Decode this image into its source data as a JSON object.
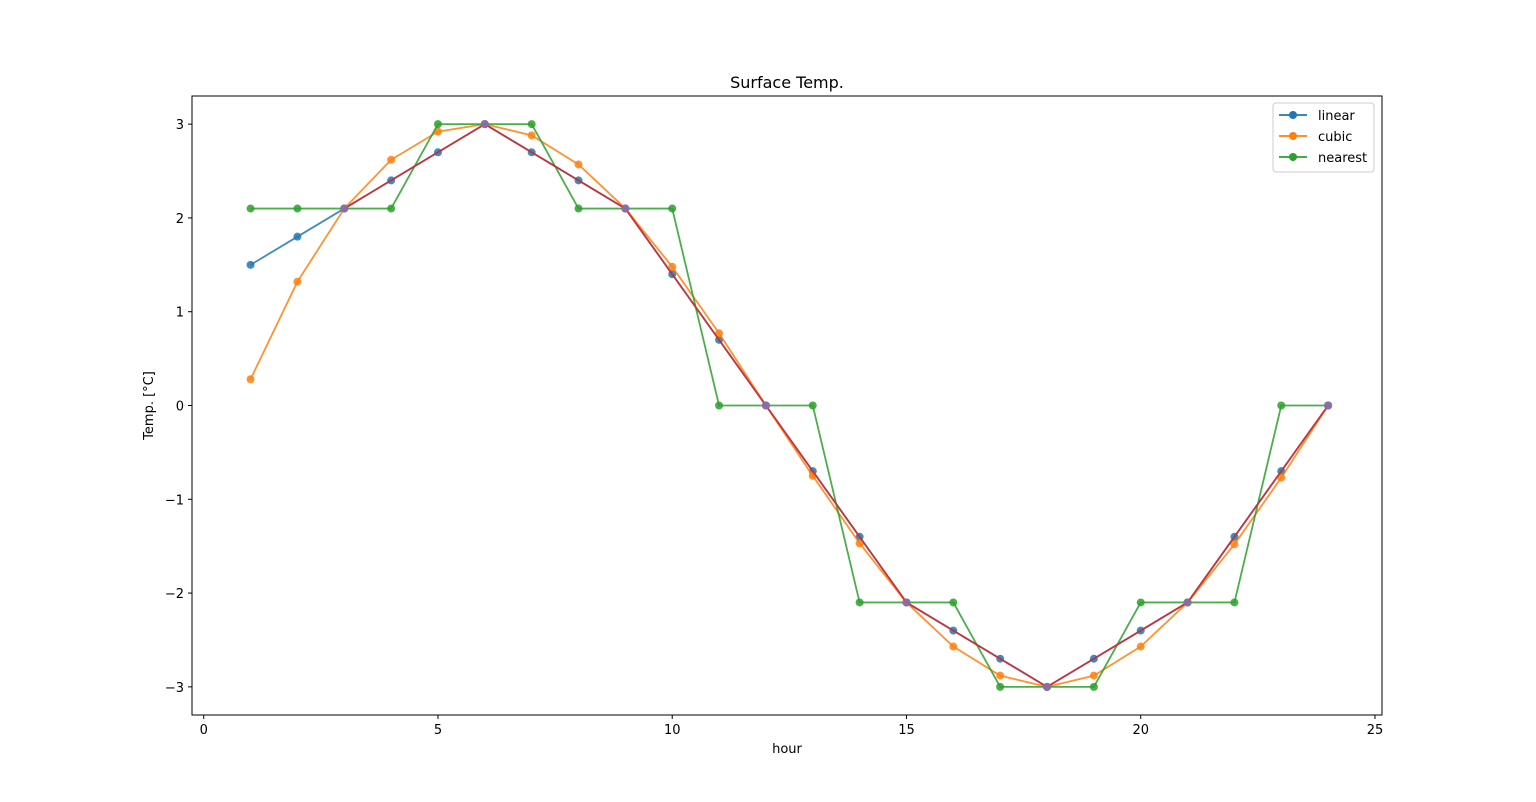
{
  "chart_data": {
    "type": "line",
    "title": "Surface Temp.",
    "xlabel": "hour",
    "ylabel": "Temp. [°C]",
    "xlim": [
      -0.25,
      25.15
    ],
    "ylim": [
      -3.3,
      3.3
    ],
    "xticks": [
      0,
      5,
      10,
      15,
      20,
      25
    ],
    "xtick_labels": [
      "0",
      "5",
      "10",
      "15",
      "20",
      "25"
    ],
    "yticks": [
      -3,
      -2,
      -1,
      0,
      1,
      2,
      3
    ],
    "ytick_labels": [
      "−3",
      "−2",
      "−1",
      "0",
      "1",
      "2",
      "3"
    ],
    "grid": false,
    "legend_position": "top-right",
    "series": [
      {
        "name": "linear",
        "color": "#1f77b4",
        "marker": true,
        "in_legend": true,
        "x": [
          1,
          2,
          3,
          4,
          5,
          6,
          7,
          8,
          9,
          10,
          11,
          12,
          13,
          14,
          15,
          16,
          17,
          18,
          19,
          20,
          21,
          22,
          23,
          24
        ],
        "y": [
          1.5,
          1.8,
          2.1,
          2.4,
          2.7,
          3.0,
          2.7,
          2.4,
          2.1,
          1.4,
          0.7,
          0.0,
          -0.7,
          -1.4,
          -2.1,
          -2.4,
          -2.7,
          -3.0,
          -2.7,
          -2.4,
          -2.1,
          -1.4,
          -0.7,
          0.0
        ]
      },
      {
        "name": "cubic",
        "color": "#ff7f0e",
        "marker": true,
        "in_legend": true,
        "x": [
          1,
          2,
          3,
          4,
          5,
          6,
          7,
          8,
          9,
          10,
          11,
          12,
          13,
          14,
          15,
          16,
          17,
          18,
          19,
          20,
          21,
          22,
          23,
          24
        ],
        "y": [
          0.28,
          1.32,
          2.1,
          2.62,
          2.92,
          3.0,
          2.88,
          2.57,
          2.1,
          1.48,
          0.77,
          0.0,
          -0.75,
          -1.47,
          -2.1,
          -2.57,
          -2.88,
          -3.0,
          -2.88,
          -2.57,
          -2.1,
          -1.48,
          -0.77,
          0.0
        ]
      },
      {
        "name": "nearest",
        "color": "#2ca02c",
        "marker": true,
        "in_legend": true,
        "x": [
          1,
          2,
          3,
          4,
          5,
          6,
          7,
          8,
          9,
          10,
          11,
          12,
          13,
          14,
          15,
          16,
          17,
          18,
          19,
          20,
          21,
          22,
          23,
          24
        ],
        "y": [
          2.1,
          2.1,
          2.1,
          2.1,
          3.0,
          3.0,
          3.0,
          2.1,
          2.1,
          2.1,
          0.0,
          0.0,
          0.0,
          -2.1,
          -2.1,
          -2.1,
          -3.0,
          -3.0,
          -3.0,
          -2.1,
          -2.1,
          -2.1,
          0.0,
          0.0
        ]
      },
      {
        "name": "",
        "color": "#d62728",
        "marker": false,
        "in_legend": false,
        "x": [
          3,
          6,
          9,
          12,
          15,
          18,
          21,
          24
        ],
        "y": [
          2.1,
          3.0,
          2.1,
          0.0,
          -2.1,
          -3.0,
          -2.1,
          0.0
        ]
      },
      {
        "name": "",
        "color": "#9467bd",
        "marker": true,
        "line": false,
        "in_legend": false,
        "x": [
          3,
          6,
          9,
          12,
          15,
          18,
          21,
          24
        ],
        "y": [
          2.1,
          3.0,
          2.1,
          0.0,
          -2.1,
          -3.0,
          -2.1,
          0.0
        ]
      }
    ]
  }
}
